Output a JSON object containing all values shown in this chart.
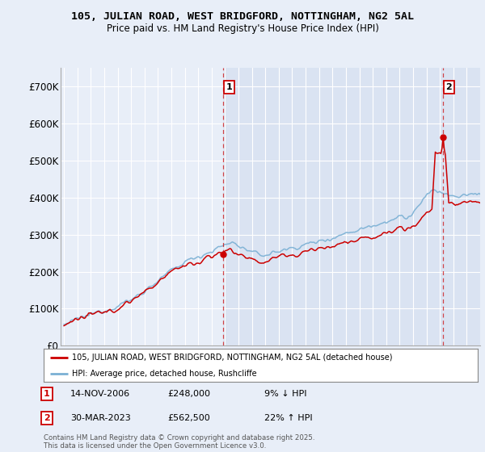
{
  "title_line1": "105, JULIAN ROAD, WEST BRIDGFORD, NOTTINGHAM, NG2 5AL",
  "title_line2": "Price paid vs. HM Land Registry's House Price Index (HPI)",
  "ylim": [
    0,
    750000
  ],
  "yticks": [
    0,
    100000,
    200000,
    300000,
    400000,
    500000,
    600000,
    700000
  ],
  "ytick_labels": [
    "£0",
    "£100K",
    "£200K",
    "£300K",
    "£400K",
    "£500K",
    "£600K",
    "£700K"
  ],
  "xlim_start": 1994.75,
  "xlim_end": 2026.0,
  "background_color": "#e8eef8",
  "plot_bg_color_left": "#dce6f5",
  "plot_bg_color_right": "#e8eef8",
  "grid_color": "#ffffff",
  "sale1_x": 2006.87,
  "sale1_y": 248000,
  "sale1_label": "1",
  "sale2_x": 2023.24,
  "sale2_y": 562500,
  "sale2_label": "2",
  "sale_color": "#cc0000",
  "hpi_color": "#7ab0d4",
  "legend_sale_label": "105, JULIAN ROAD, WEST BRIDGFORD, NOTTINGHAM, NG2 5AL (detached house)",
  "legend_hpi_label": "HPI: Average price, detached house, Rushcliffe",
  "annotation1_date": "14-NOV-2006",
  "annotation1_price": "£248,000",
  "annotation1_hpi": "9% ↓ HPI",
  "annotation2_date": "30-MAR-2023",
  "annotation2_price": "£562,500",
  "annotation2_hpi": "22% ↑ HPI",
  "footer": "Contains HM Land Registry data © Crown copyright and database right 2025.\nThis data is licensed under the Open Government Licence v3.0.",
  "vline_color": "#cc0000"
}
